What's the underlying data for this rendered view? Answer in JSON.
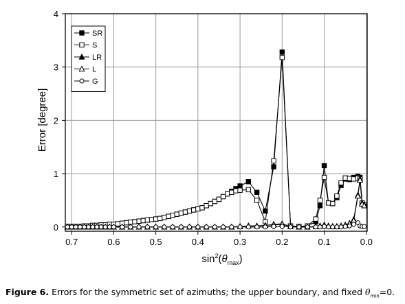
{
  "chart_data": {
    "type": "line",
    "xlabel": {
      "prefix": "sin",
      "sup": "2",
      "open": "(",
      "symbol": "θ",
      "sub": "max",
      "close": ")"
    },
    "ylabel": "Error [degree]",
    "xlim": [
      0.715,
      -0.002
    ],
    "ylim": [
      -0.08,
      4
    ],
    "x_reversed": true,
    "grid": true,
    "legend_position": "top-left",
    "x_ticks": [
      0.7,
      0.6,
      0.5,
      0.4,
      0.3,
      0.2,
      0.1,
      0.0
    ],
    "x_tick_labels": [
      "0.7",
      "0.6",
      "0.5",
      "0.4",
      "0.3",
      "0.2",
      "0.1",
      "0.0"
    ],
    "y_ticks": [
      0,
      1,
      2,
      3,
      4
    ],
    "y_tick_labels": [
      "0",
      "1",
      "2",
      "3",
      "4"
    ],
    "series": [
      {
        "name": "SR",
        "marker": "square-filled",
        "x": [
          0.71,
          0.7,
          0.69,
          0.68,
          0.67,
          0.66,
          0.65,
          0.64,
          0.63,
          0.62,
          0.61,
          0.6,
          0.59,
          0.58,
          0.57,
          0.56,
          0.55,
          0.54,
          0.53,
          0.52,
          0.51,
          0.5,
          0.49,
          0.48,
          0.47,
          0.46,
          0.45,
          0.44,
          0.43,
          0.42,
          0.41,
          0.4,
          0.39,
          0.38,
          0.37,
          0.36,
          0.35,
          0.34,
          0.33,
          0.32,
          0.31,
          0.3,
          0.28,
          0.26,
          0.24,
          0.22,
          0.2,
          0.18,
          0.16,
          0.14,
          0.12,
          0.11,
          0.1,
          0.09,
          0.08,
          0.07,
          0.06,
          0.05,
          0.04,
          0.03,
          0.02,
          0.015,
          0.01,
          0.005
        ],
        "y": [
          0.01,
          0.01,
          0.01,
          0.01,
          0.02,
          0.02,
          0.03,
          0.03,
          0.04,
          0.04,
          0.05,
          0.05,
          0.06,
          0.07,
          0.08,
          0.09,
          0.1,
          0.11,
          0.12,
          0.13,
          0.14,
          0.15,
          0.16,
          0.18,
          0.2,
          0.22,
          0.24,
          0.26,
          0.28,
          0.3,
          0.32,
          0.34,
          0.36,
          0.4,
          0.44,
          0.48,
          0.52,
          0.57,
          0.62,
          0.67,
          0.72,
          0.77,
          0.85,
          0.65,
          0.3,
          1.13,
          3.28,
          0.02,
          0.01,
          0.02,
          0.1,
          0.4,
          1.15,
          0.45,
          0.44,
          0.55,
          0.78,
          0.9,
          0.89,
          0.93,
          0.95,
          0.93,
          0.44,
          0.4
        ]
      },
      {
        "name": "S",
        "marker": "square-open",
        "x": [
          0.71,
          0.7,
          0.69,
          0.68,
          0.67,
          0.66,
          0.65,
          0.64,
          0.63,
          0.62,
          0.61,
          0.6,
          0.59,
          0.58,
          0.57,
          0.56,
          0.55,
          0.54,
          0.53,
          0.52,
          0.51,
          0.5,
          0.49,
          0.48,
          0.47,
          0.46,
          0.45,
          0.44,
          0.43,
          0.42,
          0.41,
          0.4,
          0.39,
          0.38,
          0.37,
          0.36,
          0.35,
          0.34,
          0.33,
          0.32,
          0.31,
          0.3,
          0.28,
          0.26,
          0.24,
          0.22,
          0.2,
          0.18,
          0.16,
          0.14,
          0.12,
          0.11,
          0.1,
          0.09,
          0.08,
          0.07,
          0.06,
          0.05,
          0.04,
          0.03,
          0.02,
          0.015,
          0.01,
          0.005
        ],
        "y": [
          0.01,
          0.01,
          0.01,
          0.01,
          0.02,
          0.02,
          0.03,
          0.03,
          0.04,
          0.04,
          0.05,
          0.05,
          0.06,
          0.07,
          0.08,
          0.09,
          0.1,
          0.11,
          0.12,
          0.13,
          0.14,
          0.15,
          0.16,
          0.18,
          0.2,
          0.22,
          0.24,
          0.26,
          0.28,
          0.3,
          0.32,
          0.34,
          0.36,
          0.4,
          0.44,
          0.48,
          0.52,
          0.57,
          0.62,
          0.65,
          0.68,
          0.69,
          0.7,
          0.5,
          0.1,
          1.24,
          3.18,
          0.02,
          0.01,
          0.02,
          0.15,
          0.5,
          0.93,
          0.45,
          0.44,
          0.58,
          0.83,
          0.92,
          0.91,
          0.9,
          0.92,
          0.9,
          0.45,
          0.42
        ]
      },
      {
        "name": "LR",
        "marker": "triangle-filled",
        "x": [
          0.71,
          0.7,
          0.69,
          0.68,
          0.67,
          0.66,
          0.65,
          0.64,
          0.63,
          0.62,
          0.61,
          0.6,
          0.58,
          0.56,
          0.54,
          0.52,
          0.5,
          0.48,
          0.46,
          0.44,
          0.42,
          0.4,
          0.38,
          0.36,
          0.34,
          0.32,
          0.3,
          0.28,
          0.26,
          0.24,
          0.22,
          0.2,
          0.18,
          0.16,
          0.14,
          0.12,
          0.11,
          0.1,
          0.09,
          0.08,
          0.07,
          0.06,
          0.05,
          0.04,
          0.03,
          0.02,
          0.015,
          0.01,
          0.005
        ],
        "y": [
          0.0,
          0.0,
          0.0,
          0.0,
          0.0,
          0.0,
          0.0,
          0.0,
          0.0,
          0.0,
          0.0,
          0.0,
          0.0,
          0.0,
          0.0,
          0.0,
          0.0,
          0.0,
          0.0,
          0.0,
          0.0,
          0.0,
          0.0,
          0.0,
          0.0,
          0.0,
          0.01,
          0.02,
          0.02,
          0.03,
          0.05,
          0.06,
          0.01,
          0.0,
          0.0,
          0.01,
          0.02,
          0.04,
          0.02,
          0.01,
          0.01,
          0.02,
          0.04,
          0.07,
          0.14,
          0.6,
          0.9,
          0.45,
          0.42
        ]
      },
      {
        "name": "L",
        "marker": "triangle-open",
        "x": [
          0.71,
          0.7,
          0.69,
          0.68,
          0.67,
          0.66,
          0.65,
          0.64,
          0.63,
          0.62,
          0.61,
          0.6,
          0.58,
          0.56,
          0.54,
          0.52,
          0.5,
          0.48,
          0.46,
          0.44,
          0.42,
          0.4,
          0.38,
          0.36,
          0.34,
          0.32,
          0.3,
          0.28,
          0.26,
          0.24,
          0.22,
          0.2,
          0.18,
          0.16,
          0.14,
          0.12,
          0.11,
          0.1,
          0.09,
          0.08,
          0.07,
          0.06,
          0.05,
          0.04,
          0.03,
          0.02,
          0.015,
          0.01,
          0.005
        ],
        "y": [
          0.0,
          0.0,
          0.0,
          0.0,
          0.0,
          0.0,
          0.0,
          0.0,
          0.0,
          0.0,
          0.0,
          0.0,
          0.0,
          0.0,
          0.0,
          0.0,
          0.0,
          0.0,
          0.0,
          0.0,
          0.0,
          0.0,
          0.0,
          0.0,
          0.0,
          0.0,
          0.01,
          0.02,
          0.02,
          0.03,
          0.04,
          0.05,
          0.01,
          0.0,
          0.0,
          0.01,
          0.02,
          0.03,
          0.02,
          0.01,
          0.01,
          0.02,
          0.03,
          0.06,
          0.12,
          0.58,
          0.88,
          0.43,
          0.4
        ]
      },
      {
        "name": "G",
        "marker": "circle-open",
        "x": [
          0.71,
          0.7,
          0.69,
          0.68,
          0.67,
          0.66,
          0.65,
          0.64,
          0.63,
          0.62,
          0.61,
          0.6,
          0.58,
          0.56,
          0.54,
          0.52,
          0.5,
          0.48,
          0.46,
          0.44,
          0.42,
          0.4,
          0.38,
          0.36,
          0.34,
          0.32,
          0.3,
          0.28,
          0.26,
          0.24,
          0.22,
          0.2,
          0.18,
          0.16,
          0.14,
          0.12,
          0.11,
          0.1,
          0.09,
          0.08,
          0.07,
          0.06,
          0.05,
          0.04,
          0.03,
          0.02,
          0.015,
          0.01,
          0.005
        ],
        "y": [
          0.0,
          0.0,
          0.0,
          0.0,
          0.0,
          0.0,
          0.0,
          0.0,
          0.0,
          0.0,
          0.0,
          0.0,
          0.0,
          0.0,
          0.0,
          0.0,
          0.0,
          0.0,
          0.0,
          0.0,
          0.0,
          0.0,
          0.0,
          0.0,
          0.0,
          0.0,
          0.0,
          0.0,
          0.0,
          0.0,
          0.01,
          0.01,
          0.0,
          0.0,
          0.0,
          0.0,
          0.0,
          0.01,
          0.0,
          0.0,
          0.0,
          0.0,
          0.01,
          0.02,
          0.05,
          0.08,
          0.02,
          0.01,
          0.01
        ]
      }
    ]
  },
  "caption": {
    "label": "Figure 6.",
    "text": " Errors for the symmetric set of azimuths; the upper boundary, and fixed ",
    "symbol": "θ",
    "sub": "min",
    "tail": "=0."
  }
}
